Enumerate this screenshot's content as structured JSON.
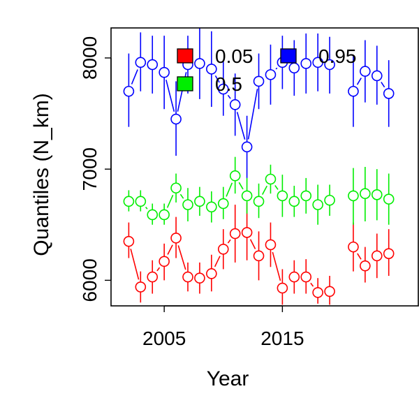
{
  "chart_data": {
    "type": "scatter",
    "xlabel": "Year",
    "ylabel": "Quantiles (N_km)",
    "xlim": [
      2000.5,
      2026.5
    ],
    "ylim": [
      5770,
      8270
    ],
    "x_ticks": [
      2005,
      2015
    ],
    "y_ticks": [
      6000,
      7000,
      8000
    ],
    "legend_position": "top-left",
    "series": [
      {
        "name": "0.05",
        "color": "#ff0000",
        "points": [
          {
            "x": 2002,
            "y": 6350,
            "lo": 6200,
            "hi": 6520
          },
          {
            "x": 2003,
            "y": 5940,
            "lo": 5800,
            "hi": 6080
          },
          {
            "x": 2004,
            "y": 6030,
            "lo": 5880,
            "hi": 6180
          },
          {
            "x": 2005,
            "y": 6170,
            "lo": 6000,
            "hi": 6330
          },
          {
            "x": 2006,
            "y": 6380,
            "lo": 6200,
            "hi": 6570
          },
          {
            "x": 2007,
            "y": 6030,
            "lo": 5900,
            "hi": 6160
          },
          {
            "x": 2008,
            "y": 6020,
            "lo": 5880,
            "hi": 6160
          },
          {
            "x": 2009,
            "y": 6060,
            "lo": 5900,
            "hi": 6230
          },
          {
            "x": 2010,
            "y": 6280,
            "lo": 6100,
            "hi": 6460
          },
          {
            "x": 2011,
            "y": 6420,
            "lo": 6160,
            "hi": 6680
          },
          {
            "x": 2012,
            "y": 6430,
            "lo": 6180,
            "hi": 6700
          },
          {
            "x": 2013,
            "y": 6220,
            "lo": 6000,
            "hi": 6440
          },
          {
            "x": 2014,
            "y": 6320,
            "lo": 6120,
            "hi": 6520
          },
          {
            "x": 2015,
            "y": 5930,
            "lo": 5780,
            "hi": 6100
          },
          {
            "x": 2016,
            "y": 6030,
            "lo": 5880,
            "hi": 6180
          },
          {
            "x": 2017,
            "y": 6030,
            "lo": 5880,
            "hi": 6190
          },
          {
            "x": 2018,
            "y": 5890,
            "lo": 5790,
            "hi": 6020
          },
          {
            "x": 2019,
            "y": 5900,
            "lo": 5780,
            "hi": 6040
          },
          {
            "x": 2021,
            "y": 6300,
            "lo": 6080,
            "hi": 6520
          },
          {
            "x": 2022,
            "y": 6130,
            "lo": 5980,
            "hi": 6300
          },
          {
            "x": 2023,
            "y": 6220,
            "lo": 6020,
            "hi": 6420
          },
          {
            "x": 2024,
            "y": 6240,
            "lo": 6040,
            "hi": 6460
          }
        ]
      },
      {
        "name": "0.5",
        "color": "#00ee00",
        "points": [
          {
            "x": 2002,
            "y": 6710,
            "lo": 6620,
            "hi": 6810
          },
          {
            "x": 2003,
            "y": 6710,
            "lo": 6620,
            "hi": 6810
          },
          {
            "x": 2004,
            "y": 6590,
            "lo": 6500,
            "hi": 6690
          },
          {
            "x": 2005,
            "y": 6590,
            "lo": 6500,
            "hi": 6690
          },
          {
            "x": 2006,
            "y": 6830,
            "lo": 6700,
            "hi": 6960
          },
          {
            "x": 2007,
            "y": 6680,
            "lo": 6530,
            "hi": 6830
          },
          {
            "x": 2008,
            "y": 6710,
            "lo": 6580,
            "hi": 6840
          },
          {
            "x": 2009,
            "y": 6660,
            "lo": 6520,
            "hi": 6800
          },
          {
            "x": 2010,
            "y": 6690,
            "lo": 6550,
            "hi": 6840
          },
          {
            "x": 2011,
            "y": 6940,
            "lo": 6780,
            "hi": 7110
          },
          {
            "x": 2012,
            "y": 6760,
            "lo": 6600,
            "hi": 6920
          },
          {
            "x": 2013,
            "y": 6710,
            "lo": 6560,
            "hi": 6870
          },
          {
            "x": 2014,
            "y": 6910,
            "lo": 6780,
            "hi": 7040
          },
          {
            "x": 2015,
            "y": 6760,
            "lo": 6570,
            "hi": 6950
          },
          {
            "x": 2016,
            "y": 6710,
            "lo": 6570,
            "hi": 6850
          },
          {
            "x": 2017,
            "y": 6760,
            "lo": 6600,
            "hi": 6920
          },
          {
            "x": 2018,
            "y": 6680,
            "lo": 6500,
            "hi": 6860
          },
          {
            "x": 2019,
            "y": 6720,
            "lo": 6580,
            "hi": 6860
          },
          {
            "x": 2021,
            "y": 6760,
            "lo": 6500,
            "hi": 7010
          },
          {
            "x": 2022,
            "y": 6780,
            "lo": 6530,
            "hi": 7020
          },
          {
            "x": 2023,
            "y": 6770,
            "lo": 6540,
            "hi": 7000
          },
          {
            "x": 2024,
            "y": 6730,
            "lo": 6500,
            "hi": 6960
          }
        ]
      },
      {
        "name": "0.95",
        "color": "#0000ff",
        "points": [
          {
            "x": 2002,
            "y": 7700,
            "lo": 7380,
            "hi": 8040
          },
          {
            "x": 2003,
            "y": 7960,
            "lo": 7700,
            "hi": 8230
          },
          {
            "x": 2004,
            "y": 7940,
            "lo": 7680,
            "hi": 8200
          },
          {
            "x": 2005,
            "y": 7870,
            "lo": 7540,
            "hi": 8200
          },
          {
            "x": 2006,
            "y": 7450,
            "lo": 7120,
            "hi": 7790
          },
          {
            "x": 2007,
            "y": 7940,
            "lo": 7680,
            "hi": 8200
          },
          {
            "x": 2008,
            "y": 7950,
            "lo": 7630,
            "hi": 8270
          },
          {
            "x": 2009,
            "y": 7900,
            "lo": 7560,
            "hi": 8240
          },
          {
            "x": 2010,
            "y": 7720,
            "lo": 7480,
            "hi": 7970
          },
          {
            "x": 2011,
            "y": 7580,
            "lo": 7300,
            "hi": 7860
          },
          {
            "x": 2012,
            "y": 7200,
            "lo": 6920,
            "hi": 7480
          },
          {
            "x": 2013,
            "y": 7790,
            "lo": 7540,
            "hi": 8040
          },
          {
            "x": 2014,
            "y": 7850,
            "lo": 7580,
            "hi": 8120
          },
          {
            "x": 2015,
            "y": 7960,
            "lo": 7720,
            "hi": 8200
          },
          {
            "x": 2016,
            "y": 7910,
            "lo": 7660,
            "hi": 8160
          },
          {
            "x": 2017,
            "y": 7950,
            "lo": 7680,
            "hi": 8220
          },
          {
            "x": 2018,
            "y": 7960,
            "lo": 7700,
            "hi": 8220
          },
          {
            "x": 2019,
            "y": 7940,
            "lo": 7680,
            "hi": 8190
          },
          {
            "x": 2021,
            "y": 7700,
            "lo": 7380,
            "hi": 8020
          },
          {
            "x": 2022,
            "y": 7880,
            "lo": 7600,
            "hi": 8160
          },
          {
            "x": 2023,
            "y": 7840,
            "lo": 7580,
            "hi": 8110
          },
          {
            "x": 2024,
            "y": 7680,
            "lo": 7380,
            "hi": 7980
          }
        ]
      }
    ]
  }
}
